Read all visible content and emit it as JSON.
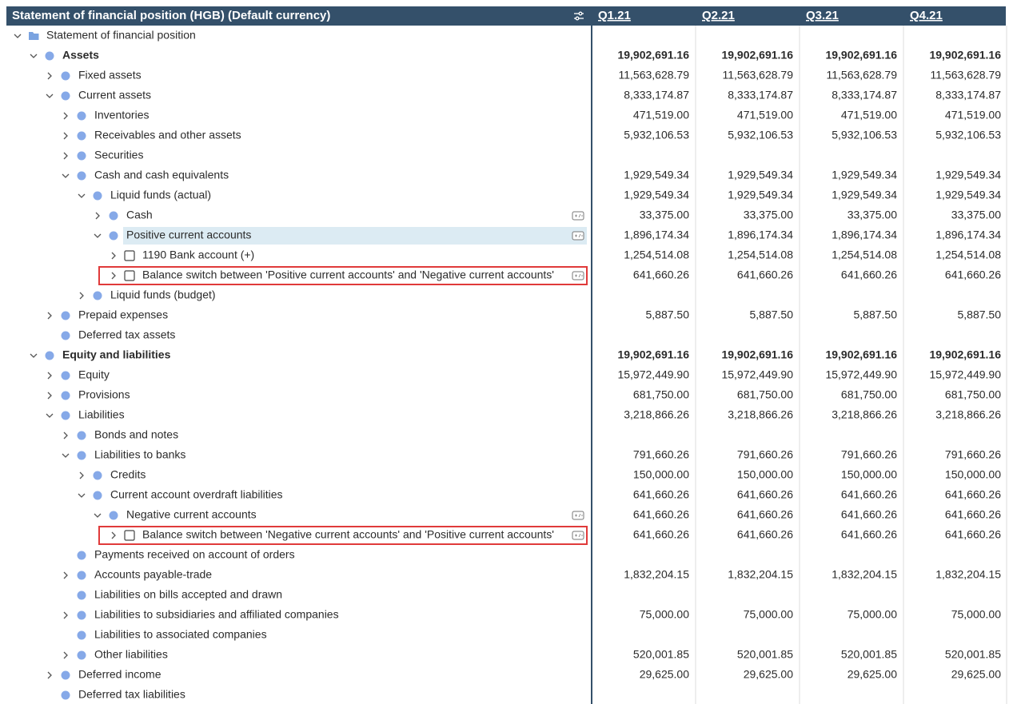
{
  "header": {
    "title": "Statement of financial position (HGB) (Default currency)",
    "columns": [
      "Q1.21",
      "Q2.21",
      "Q3.21",
      "Q4.21"
    ]
  },
  "table": {
    "rows": [
      {
        "label": "Statement of financial position",
        "level": 0,
        "expanded": true,
        "icon": "folder",
        "values": []
      },
      {
        "label": "Assets",
        "level": 1,
        "expanded": true,
        "icon": "dot",
        "values": [
          "19,902,691.16",
          "19,902,691.16",
          "19,902,691.16",
          "19,902,691.16"
        ]
      },
      {
        "label": "Fixed assets",
        "level": 2,
        "expanded": false,
        "icon": "dot",
        "values": [
          "11,563,628.79",
          "11,563,628.79",
          "11,563,628.79",
          "11,563,628.79"
        ]
      },
      {
        "label": "Current assets",
        "level": 2,
        "expanded": true,
        "icon": "dot",
        "values": [
          "8,333,174.87",
          "8,333,174.87",
          "8,333,174.87",
          "8,333,174.87"
        ]
      },
      {
        "label": "Inventories",
        "level": 3,
        "expanded": false,
        "icon": "dot",
        "values": [
          "471,519.00",
          "471,519.00",
          "471,519.00",
          "471,519.00"
        ]
      },
      {
        "label": "Receivables and other assets",
        "level": 3,
        "expanded": false,
        "icon": "dot",
        "values": [
          "5,932,106.53",
          "5,932,106.53",
          "5,932,106.53",
          "5,932,106.53"
        ]
      },
      {
        "label": "Securities",
        "level": 3,
        "expanded": false,
        "icon": "dot",
        "values": []
      },
      {
        "label": "Cash and cash equivalents",
        "level": 3,
        "expanded": true,
        "icon": "dot",
        "values": [
          "1,929,549.34",
          "1,929,549.34",
          "1,929,549.34",
          "1,929,549.34"
        ]
      },
      {
        "label": "Liquid funds (actual)",
        "level": 4,
        "expanded": true,
        "icon": "dot",
        "values": [
          "1,929,549.34",
          "1,929,549.34",
          "1,929,549.34",
          "1,929,549.34"
        ]
      },
      {
        "label": "Cash",
        "level": 5,
        "expanded": false,
        "icon": "dot",
        "switch": true,
        "values": [
          "33,375.00",
          "33,375.00",
          "33,375.00",
          "33,375.00"
        ]
      },
      {
        "label": "Positive current accounts",
        "level": 5,
        "expanded": true,
        "icon": "dot",
        "switch": true,
        "selected": true,
        "values": [
          "1,896,174.34",
          "1,896,174.34",
          "1,896,174.34",
          "1,896,174.34"
        ]
      },
      {
        "label": "1190 Bank account (+)",
        "level": 6,
        "expanded": false,
        "icon": "account",
        "values": [
          "1,254,514.08",
          "1,254,514.08",
          "1,254,514.08",
          "1,254,514.08"
        ]
      },
      {
        "label": "Balance switch between 'Positive current accounts' and 'Negative current accounts'",
        "level": 6,
        "expanded": false,
        "icon": "account",
        "switch": true,
        "flagged": true,
        "values": [
          "641,660.26",
          "641,660.26",
          "641,660.26",
          "641,660.26"
        ]
      },
      {
        "label": "Liquid funds (budget)",
        "level": 4,
        "expanded": false,
        "icon": "dot",
        "values": []
      },
      {
        "label": "Prepaid expenses",
        "level": 2,
        "expanded": false,
        "icon": "dot",
        "values": [
          "5,887.50",
          "5,887.50",
          "5,887.50",
          "5,887.50"
        ]
      },
      {
        "label": "Deferred tax assets",
        "level": 2,
        "expanded": null,
        "icon": "dot",
        "values": []
      },
      {
        "label": "Equity and liabilities",
        "level": 1,
        "expanded": true,
        "icon": "dot",
        "values": [
          "19,902,691.16",
          "19,902,691.16",
          "19,902,691.16",
          "19,902,691.16"
        ]
      },
      {
        "label": "Equity",
        "level": 2,
        "expanded": false,
        "icon": "dot",
        "values": [
          "15,972,449.90",
          "15,972,449.90",
          "15,972,449.90",
          "15,972,449.90"
        ]
      },
      {
        "label": "Provisions",
        "level": 2,
        "expanded": false,
        "icon": "dot",
        "values": [
          "681,750.00",
          "681,750.00",
          "681,750.00",
          "681,750.00"
        ]
      },
      {
        "label": "Liabilities",
        "level": 2,
        "expanded": true,
        "icon": "dot",
        "values": [
          "3,218,866.26",
          "3,218,866.26",
          "3,218,866.26",
          "3,218,866.26"
        ]
      },
      {
        "label": "Bonds and notes",
        "level": 3,
        "expanded": false,
        "icon": "dot",
        "values": []
      },
      {
        "label": "Liabilities to banks",
        "level": 3,
        "expanded": true,
        "icon": "dot",
        "values": [
          "791,660.26",
          "791,660.26",
          "791,660.26",
          "791,660.26"
        ]
      },
      {
        "label": "Credits",
        "level": 4,
        "expanded": false,
        "icon": "dot",
        "values": [
          "150,000.00",
          "150,000.00",
          "150,000.00",
          "150,000.00"
        ]
      },
      {
        "label": "Current account overdraft liabilities",
        "level": 4,
        "expanded": true,
        "icon": "dot",
        "values": [
          "641,660.26",
          "641,660.26",
          "641,660.26",
          "641,660.26"
        ]
      },
      {
        "label": "Negative current accounts",
        "level": 5,
        "expanded": true,
        "icon": "dot",
        "switch": true,
        "values": [
          "641,660.26",
          "641,660.26",
          "641,660.26",
          "641,660.26"
        ]
      },
      {
        "label": "Balance switch between 'Negative current accounts' and 'Positive current accounts'",
        "level": 6,
        "expanded": false,
        "icon": "account",
        "switch": true,
        "flagged": true,
        "values": [
          "641,660.26",
          "641,660.26",
          "641,660.26",
          "641,660.26"
        ]
      },
      {
        "label": "Payments received on account of orders",
        "level": 3,
        "expanded": null,
        "icon": "dot",
        "values": []
      },
      {
        "label": "Accounts payable-trade",
        "level": 3,
        "expanded": false,
        "icon": "dot",
        "values": [
          "1,832,204.15",
          "1,832,204.15",
          "1,832,204.15",
          "1,832,204.15"
        ]
      },
      {
        "label": "Liabilities on bills accepted and drawn",
        "level": 3,
        "expanded": null,
        "icon": "dot",
        "values": []
      },
      {
        "label": "Liabilities to subsidiaries and affiliated companies",
        "level": 3,
        "expanded": false,
        "icon": "dot",
        "values": [
          "75,000.00",
          "75,000.00",
          "75,000.00",
          "75,000.00"
        ]
      },
      {
        "label": "Liabilities to associated companies",
        "level": 3,
        "expanded": null,
        "icon": "dot",
        "values": []
      },
      {
        "label": "Other liabilities",
        "level": 3,
        "expanded": false,
        "icon": "dot",
        "values": [
          "520,001.85",
          "520,001.85",
          "520,001.85",
          "520,001.85"
        ]
      },
      {
        "label": "Deferred income",
        "level": 2,
        "expanded": false,
        "icon": "dot",
        "values": [
          "29,625.00",
          "29,625.00",
          "29,625.00",
          "29,625.00"
        ]
      },
      {
        "label": "Deferred tax liabilities",
        "level": 2,
        "expanded": null,
        "icon": "dot",
        "values": []
      }
    ]
  }
}
